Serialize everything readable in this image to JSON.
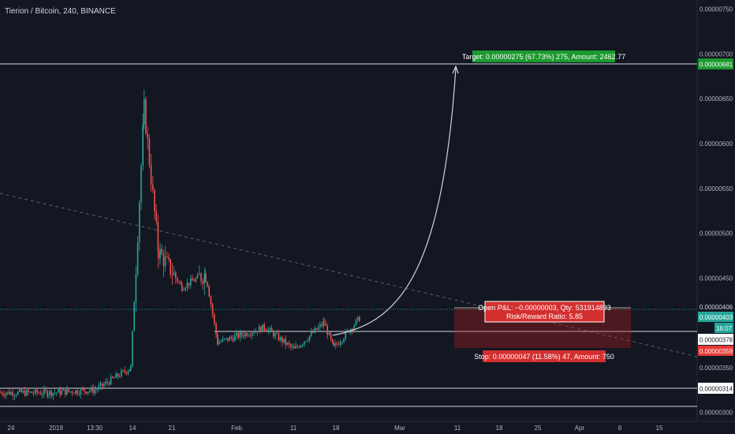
{
  "header": {
    "title": "Tierion / Bitcoin, 240, BINANCE"
  },
  "colors": {
    "background": "#131722",
    "up": "#26a69a",
    "down": "#ef5350",
    "text": "#d1d4dc",
    "target": "#089981",
    "stop": "#e53935",
    "last_price": "#26a69a"
  },
  "axis": {
    "y_ticks": [
      "0.00000750",
      "0.00000700",
      "0.00000650",
      "0.00000600",
      "0.00000550",
      "0.00000500",
      "0.00000450",
      "0.00000350",
      "0.00000300"
    ],
    "x_ticks": [
      "24",
      "2019",
      "13:30",
      "14",
      "21",
      "Feb",
      "11",
      "18",
      "Mar",
      "11",
      "18",
      "25",
      "Apr",
      "8",
      "15"
    ]
  },
  "price_tags": {
    "target_level": "0.00000681",
    "entry": "0.00000406",
    "last": "0.00000403",
    "countdown": "16:07",
    "support": "0.00000378",
    "stop_level": "0.00000359",
    "low_line": "0.00000314"
  },
  "position": {
    "target_label": "Target: 0.00000275 (67.73%) 275, Amount: 2462.77",
    "pnl_label": "Open P&L: −0.00000003, Qty: 531914893",
    "rr_label": "Risk/Reward Ratio: 5.85",
    "stop_label": "Stop: 0.00000047 (11.58%) 47, Amount: 750"
  },
  "chart_data": {
    "type": "candlestick",
    "symbol": "Tierion / Bitcoin",
    "interval": "240",
    "exchange": "BINANCE",
    "y_unit": "BTC",
    "ylim": [
      2.9e-06,
      7.55e-06
    ],
    "horizontal_lines": [
      6.81e-06,
      3.78e-06,
      3.14e-06,
      2.9e-06
    ],
    "trend_line": {
      "from": 5.25e-06,
      "to": 3.55e-06
    },
    "path_segments": [
      {
        "from": 3.22e-06,
        "to": 3.22e-06,
        "label": "2019"
      },
      {
        "from": 3.22e-06,
        "to": 3.25e-06,
        "label": "13:30"
      },
      {
        "from": 3.25e-06,
        "to": 3.5e-06,
        "label": "14"
      },
      {
        "from": 3.5e-06,
        "to": 6.4e-06,
        "label": "14"
      },
      {
        "from": 6.4e-06,
        "to": 4.8e-06,
        "label": "21"
      },
      {
        "from": 4.8e-06,
        "to": 4.4e-06,
        "label": "21"
      },
      {
        "from": 4.4e-06,
        "to": 4.55e-06,
        "label": "21"
      },
      {
        "from": 4.55e-06,
        "to": 3.78e-06,
        "label": "Feb"
      },
      {
        "from": 3.78e-06,
        "to": 3.95e-06,
        "label": "Feb"
      },
      {
        "from": 3.95e-06,
        "to": 3.7e-06,
        "label": "11"
      },
      {
        "from": 3.7e-06,
        "to": 4e-06,
        "label": "11"
      },
      {
        "from": 4e-06,
        "to": 3.72e-06,
        "label": "18"
      },
      {
        "from": 3.72e-06,
        "to": 4.05e-06,
        "label": "18"
      }
    ],
    "position_tool": {
      "entry": 4.06e-06,
      "target": 6.81e-06,
      "stop": 3.59e-06,
      "risk_reward": 5.85
    }
  }
}
